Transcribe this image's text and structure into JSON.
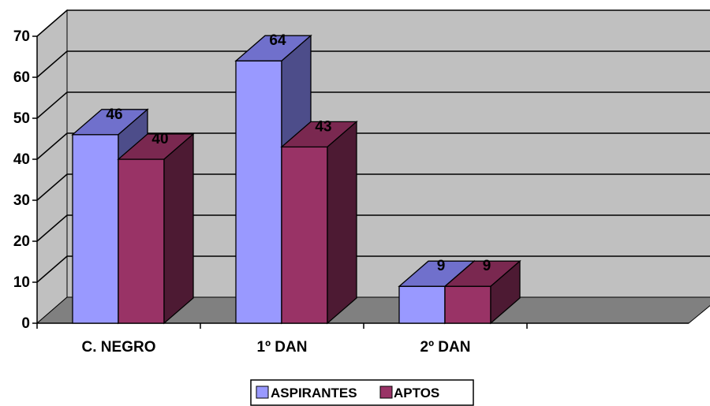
{
  "chart_data": {
    "type": "bar",
    "categories": [
      "C. NEGRO",
      "1º DAN",
      "2º DAN"
    ],
    "series": [
      {
        "name": "ASPIRANTES",
        "values": [
          46,
          64,
          9
        ],
        "color": "#9999ff"
      },
      {
        "name": "APTOS",
        "values": [
          40,
          43,
          9
        ],
        "color": "#993366"
      }
    ],
    "ylim": [
      0,
      70
    ],
    "yticks": [
      0,
      10,
      20,
      30,
      40,
      50,
      60,
      70
    ],
    "legend_position": "bottom",
    "grid": true,
    "colors": {
      "wall": "#c0c0c0",
      "floor": "#808080",
      "series1_top": "#7070cc",
      "series1_side": "#4d4d8a",
      "series2_top": "#7a2850",
      "series2_side": "#4d1a33"
    }
  }
}
